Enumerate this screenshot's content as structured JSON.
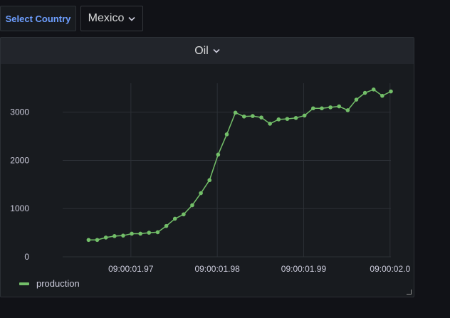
{
  "variable": {
    "label": "Select Country",
    "value": "Mexico"
  },
  "panel": {
    "title": "Oil"
  },
  "colors": {
    "series": "#73bf69",
    "label": "#6e9fff",
    "background": "#111217",
    "panel": "#181b1f"
  },
  "chart_data": {
    "type": "line",
    "title": "Oil",
    "x_tick_labels": [
      "09:00:01.97",
      "09:00:01.98",
      "09:00:01.99",
      "09:00:02.0"
    ],
    "x_tick_values": [
      1.97,
      1.98,
      1.99,
      2.0
    ],
    "y_ticks": [
      0,
      1000,
      2000,
      3000
    ],
    "ylim": [
      0,
      3600
    ],
    "grid": true,
    "legend_position": "bottom-left",
    "series": [
      {
        "name": "production",
        "x": [
          1.9651,
          1.9661,
          1.9671,
          1.9681,
          1.9691,
          1.9701,
          1.9711,
          1.9721,
          1.9731,
          1.9741,
          1.9751,
          1.9761,
          1.9771,
          1.9781,
          1.9791,
          1.9801,
          1.9811,
          1.9821,
          1.9831,
          1.9841,
          1.9851,
          1.9861,
          1.9871,
          1.9881,
          1.9891,
          1.9901,
          1.9911,
          1.9921,
          1.9931,
          1.9941,
          1.9951,
          1.9961,
          1.9971,
          1.9981,
          1.9991,
          2.0001
        ],
        "values": [
          350,
          350,
          400,
          430,
          440,
          480,
          480,
          500,
          510,
          640,
          790,
          880,
          1070,
          1320,
          1590,
          2120,
          2540,
          2990,
          2910,
          2920,
          2890,
          2760,
          2850,
          2860,
          2880,
          2930,
          3080,
          3080,
          3100,
          3120,
          3040,
          3260,
          3400,
          3470,
          3340,
          3430
        ]
      }
    ]
  }
}
